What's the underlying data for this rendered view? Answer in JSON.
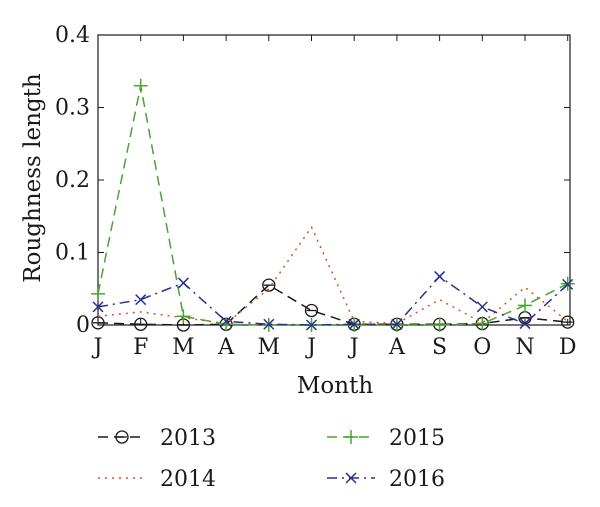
{
  "chart_data": {
    "type": "line",
    "xlabel": "Month",
    "ylabel": "Roughness length",
    "categories": [
      "J",
      "F",
      "M",
      "A",
      "M",
      "J",
      "J",
      "A",
      "S",
      "O",
      "N",
      "D"
    ],
    "ylim": [
      0,
      0.4
    ],
    "yticks": [
      "0",
      "0.1",
      "0.2",
      "0.3",
      "0.4"
    ],
    "grid": false,
    "legend_position": "bottom",
    "series": [
      {
        "name": "2013",
        "color": "#1a1a1a",
        "dash": "dashed",
        "marker": "circle-minus",
        "values": [
          0.003,
          0.001,
          0.0,
          0.001,
          0.055,
          0.02,
          0.001,
          0.001,
          0.001,
          0.002,
          0.01,
          0.004
        ]
      },
      {
        "name": "2014",
        "color": "#d9531e",
        "dash": "dotted",
        "marker": "none",
        "values": [
          0.012,
          0.018,
          0.01,
          0.002,
          0.05,
          0.135,
          0.005,
          0.002,
          0.035,
          0.003,
          0.052,
          0.005
        ]
      },
      {
        "name": "2015",
        "color": "#4aa431",
        "dash": "dashed",
        "marker": "plus",
        "values": [
          0.043,
          0.33,
          0.012,
          0.001,
          0.0,
          0.0,
          0.0,
          0.0,
          0.0,
          0.002,
          0.027,
          0.057
        ]
      },
      {
        "name": "2016",
        "color": "#2b2f8f",
        "dash": "dashdot",
        "marker": "x",
        "values": [
          0.025,
          0.035,
          0.058,
          0.005,
          0.001,
          0.0,
          0.001,
          0.001,
          0.067,
          0.025,
          0.002,
          0.056
        ]
      }
    ]
  }
}
